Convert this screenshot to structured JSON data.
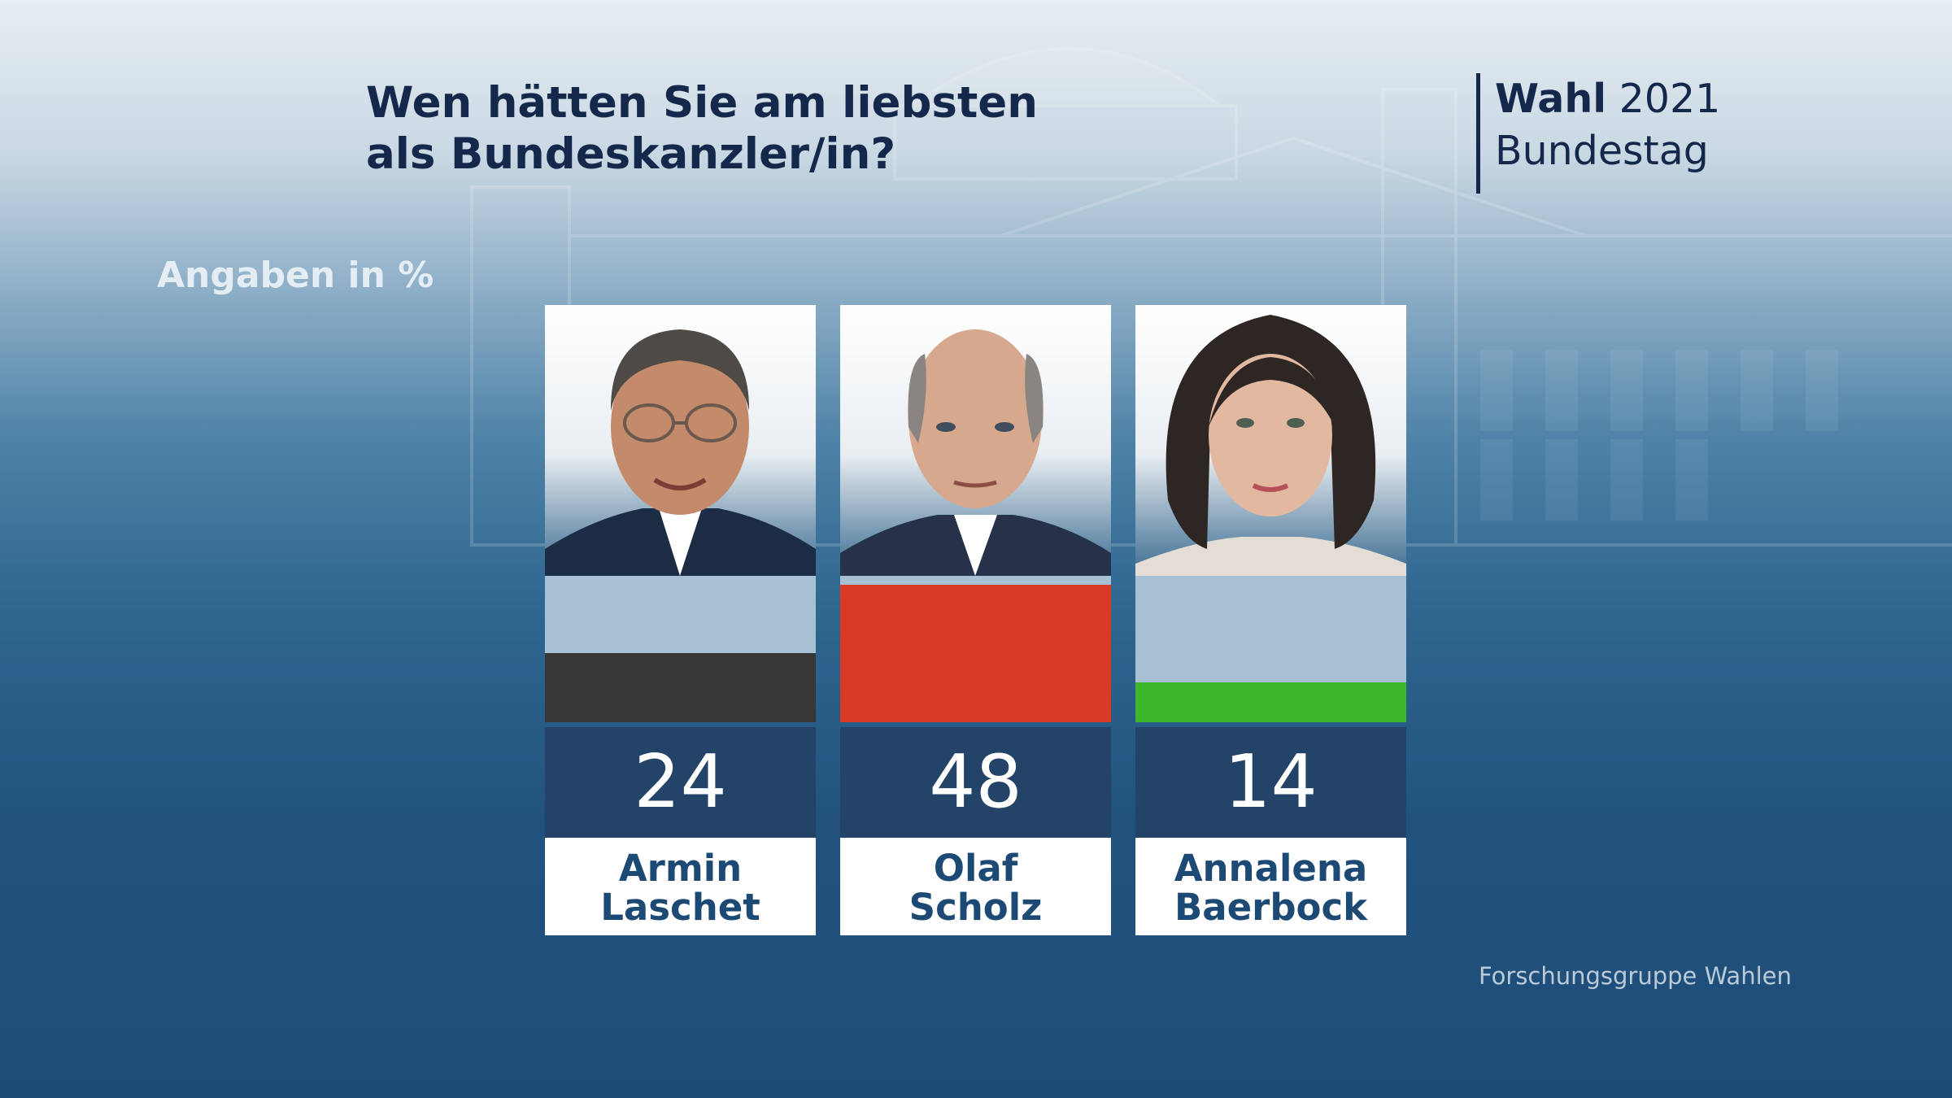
{
  "header": {
    "title_line1": "Wen hätten Sie am liebsten",
    "title_line2": "als Bundeskanzler/in?",
    "brand_bold": "Wahl",
    "brand_year": "2021",
    "brand_line2": "Bundestag"
  },
  "unit_label": "Angaben in %",
  "source": "Forschungsgruppe Wahlen",
  "chart_data": {
    "type": "bar",
    "title": "Wen hätten Sie am liebsten als Bundeskanzler/in?",
    "ylabel": "Angaben in %",
    "ylim": [
      0,
      50
    ],
    "categories": [
      "Armin Laschet",
      "Olaf Scholz",
      "Annalena Baerbock"
    ],
    "values": [
      24,
      48,
      14
    ],
    "bar_colors": [
      "#373737",
      "#d83a26",
      "#3cb82a"
    ],
    "candidates": [
      {
        "first_name": "Armin",
        "last_name": "Laschet",
        "value": 24,
        "color": "#373737"
      },
      {
        "first_name": "Olaf",
        "last_name": "Scholz",
        "value": 48,
        "color": "#d83a26"
      },
      {
        "first_name": "Annalena",
        "last_name": "Baerbock",
        "value": 14,
        "color": "#3cb82a"
      }
    ]
  },
  "colors": {
    "title": "#14284b",
    "value_box": "#234468",
    "name_text": "#1d4a74",
    "bar_track": "#a7c0d3"
  }
}
